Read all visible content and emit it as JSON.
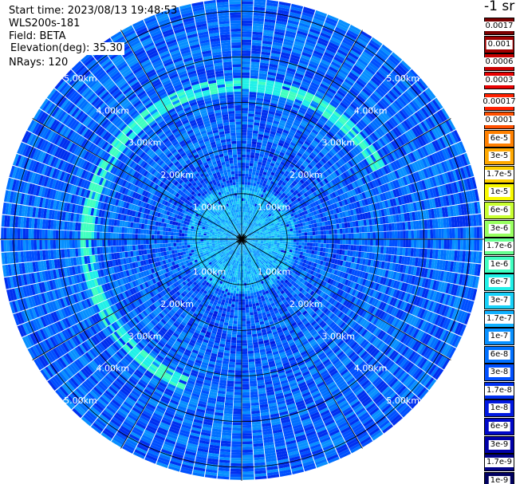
{
  "header": {
    "start_time": "Start time: 2023/08/13 19:48:53",
    "instrument": "WLS200s-181",
    "field": "Field: BETA",
    "elevation": "Elevation(deg): 35.30",
    "nrays": "NRays: 120"
  },
  "colorbar": {
    "unit_label": "-1 sr",
    "top_group": [
      {
        "label": "0.0017",
        "color": "#7a0000"
      },
      {
        "label": "0.001",
        "color": "#a00000"
      },
      {
        "label": "0.0006",
        "color": "#c80000"
      },
      {
        "label": "0.0003",
        "color": "#e80000"
      }
    ],
    "main_group": [
      {
        "label": "0.00017",
        "color": "#ff2000"
      },
      {
        "label": "0.0001",
        "color": "#ff5000"
      },
      {
        "label": "6e-5",
        "color": "#ff8000"
      },
      {
        "label": "3e-5",
        "color": "#ffa800"
      },
      {
        "label": "1.7e-5",
        "color": "#ffd000"
      },
      {
        "label": "1e-5",
        "color": "#f8f800"
      },
      {
        "label": "6e-6",
        "color": "#c8ff30"
      },
      {
        "label": "3e-6",
        "color": "#98ff60"
      },
      {
        "label": "1.7e-6",
        "color": "#68ff90"
      },
      {
        "label": "1e-6",
        "color": "#40ffc0"
      },
      {
        "label": "6e-7",
        "color": "#20f0e8"
      },
      {
        "label": "3e-7",
        "color": "#18d0f8"
      },
      {
        "label": "1.7e-7",
        "color": "#10b0ff"
      },
      {
        "label": "1e-7",
        "color": "#0890ff"
      },
      {
        "label": "6e-8",
        "color": "#0070ff"
      },
      {
        "label": "3e-8",
        "color": "#0050ff"
      },
      {
        "label": "1.7e-8",
        "color": "#0030f0"
      },
      {
        "label": "1e-8",
        "color": "#0018e0"
      },
      {
        "label": "6e-9",
        "color": "#0008c8"
      },
      {
        "label": "3e-9",
        "color": "#0000a8"
      },
      {
        "label": "1.7e-9",
        "color": "#000088"
      },
      {
        "label": "1e-9",
        "color": "#000060"
      }
    ]
  },
  "chart_data": {
    "type": "heatmap",
    "projection": "polar-ppi",
    "n_rays": 120,
    "range_rings": [
      {
        "range_km": 1.0,
        "label": "1.00km"
      },
      {
        "range_km": 2.0,
        "label": "2.00km"
      },
      {
        "range_km": 3.0,
        "label": "3.00km"
      },
      {
        "range_km": 4.0,
        "label": "4.00km"
      },
      {
        "range_km": 5.0,
        "label": "5.00km"
      }
    ],
    "max_range_km": 5.3,
    "radial_gridlines_deg": [
      0,
      30,
      60,
      90,
      120,
      150,
      180,
      210,
      240,
      270,
      300,
      330
    ],
    "background_value_range": [
      "1e-8",
      "3e-7"
    ],
    "features": [
      {
        "description": "enhanced backscatter ring",
        "range_km": 3.4,
        "value": "1.7e-6",
        "azimuth_span_deg": [
          200,
          360
        ]
      },
      {
        "description": "enhanced backscatter arc",
        "range_km": 3.4,
        "value": "1e-6",
        "azimuth_span_deg": [
          0,
          60
        ]
      }
    ]
  }
}
